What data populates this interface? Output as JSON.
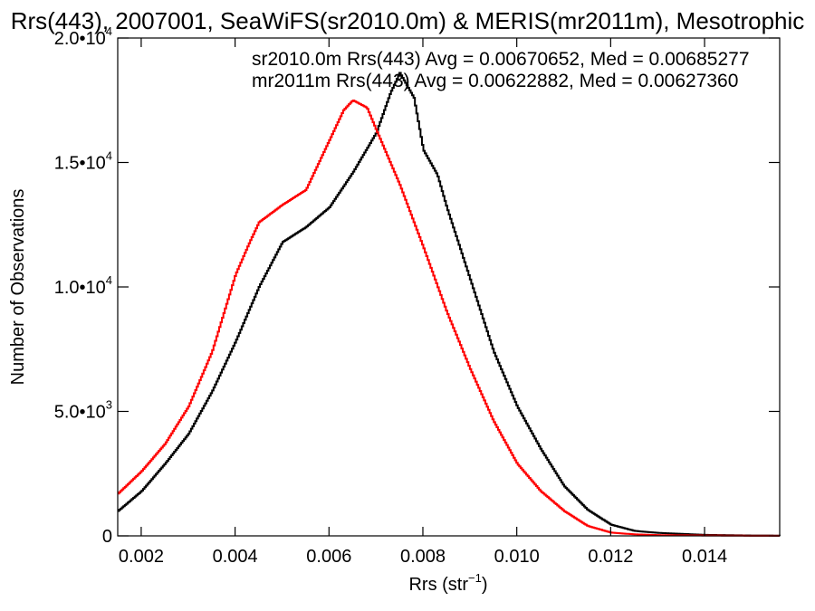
{
  "chart_data": {
    "type": "line",
    "step": true,
    "title": "Rrs(443), 2007001, SeaWiFS(sr2010.0m) & MERIS(mr2011m), Mesotrophic",
    "xlabel": "Rrs (str",
    "xlabel_sup": "−1",
    "xlabel_close": ")",
    "ylabel": "Number of Observations",
    "xlim": [
      0.0015,
      0.0156
    ],
    "ylim": [
      0,
      20000
    ],
    "grid": false,
    "x_ticks": [
      {
        "value": 0.002,
        "label": "0.002"
      },
      {
        "value": 0.004,
        "label": "0.004"
      },
      {
        "value": 0.006,
        "label": "0.006"
      },
      {
        "value": 0.008,
        "label": "0.008"
      },
      {
        "value": 0.01,
        "label": "0.010"
      },
      {
        "value": 0.012,
        "label": "0.012"
      },
      {
        "value": 0.014,
        "label": "0.014"
      }
    ],
    "y_ticks": [
      {
        "value": 0,
        "label": "0",
        "sup": ""
      },
      {
        "value": 5000,
        "label": "5.0•10",
        "sup": "3"
      },
      {
        "value": 10000,
        "label": "1.0•10",
        "sup": "4"
      },
      {
        "value": 15000,
        "label": "1.5•10",
        "sup": "4"
      },
      {
        "value": 20000,
        "label": "2.0•10",
        "sup": "4"
      }
    ],
    "legend": [
      {
        "text": "sr2010.0m Rrs(443) Avg = 0.00670652, Med = 0.00685277",
        "color": "#000000"
      },
      {
        "text": "mr2011m Rrs(443) Avg = 0.00622882, Med = 0.00627360",
        "color": "#ff0000"
      }
    ],
    "series": [
      {
        "color": "#000000",
        "x": [
          0.0015,
          0.002,
          0.0025,
          0.003,
          0.0035,
          0.004,
          0.0045,
          0.005,
          0.0055,
          0.006,
          0.0065,
          0.007,
          0.0073,
          0.0075,
          0.0078,
          0.008,
          0.0083,
          0.0085,
          0.009,
          0.0095,
          0.01,
          0.0105,
          0.011,
          0.0115,
          0.012,
          0.0125,
          0.013,
          0.0135,
          0.014,
          0.015,
          0.0156
        ],
        "values": [
          1000,
          1800,
          2900,
          4100,
          5800,
          7800,
          10000,
          11800,
          12400,
          13200,
          14600,
          16200,
          17800,
          18600,
          17600,
          15500,
          14500,
          13200,
          10300,
          7400,
          5200,
          3500,
          2000,
          1050,
          450,
          200,
          120,
          80,
          40,
          15,
          10
        ]
      },
      {
        "color": "#ff0000",
        "x": [
          0.0015,
          0.002,
          0.0025,
          0.003,
          0.0035,
          0.004,
          0.0043,
          0.0045,
          0.005,
          0.0055,
          0.006,
          0.0063,
          0.0065,
          0.0068,
          0.007,
          0.0075,
          0.008,
          0.0085,
          0.009,
          0.0095,
          0.01,
          0.0105,
          0.011,
          0.0115,
          0.012,
          0.0125,
          0.013,
          0.014,
          0.015,
          0.0156
        ],
        "values": [
          1700,
          2600,
          3700,
          5200,
          7400,
          10500,
          11800,
          12600,
          13300,
          13900,
          15900,
          17100,
          17500,
          17200,
          16300,
          14100,
          11600,
          9000,
          6700,
          4600,
          2900,
          1800,
          1000,
          400,
          130,
          60,
          30,
          15,
          5,
          5
        ]
      }
    ]
  }
}
